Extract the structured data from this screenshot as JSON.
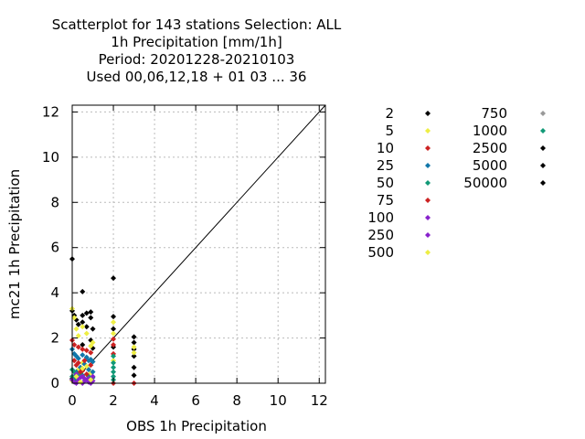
{
  "chart_data": {
    "type": "scatter",
    "title_lines": [
      "Scatterplot for  143 stations Selection: ALL",
      "1h Precipitation [mm/1h]",
      "Period: 20201228-20210103",
      "Used  00,06,12,18 + 01 03 ... 36"
    ],
    "xlabel": "OBS 1h Precipitation",
    "ylabel": "mc21 1h Precipitation",
    "xlim": [
      0,
      12.3
    ],
    "ylim": [
      0,
      12.3
    ],
    "xticks": [
      0,
      2,
      4,
      6,
      8,
      10,
      12
    ],
    "yticks": [
      0,
      2,
      4,
      6,
      8,
      10,
      12
    ],
    "grid": true,
    "diagonal_line": true,
    "legend_position": "right",
    "series": [
      {
        "name": "2",
        "color": "#000000",
        "points": [
          [
            0,
            5.5
          ],
          [
            0,
            3.2
          ],
          [
            0.1,
            3.0
          ],
          [
            0.2,
            2.8
          ],
          [
            0.3,
            2.6
          ],
          [
            0.5,
            4.05
          ],
          [
            0.5,
            3.0
          ],
          [
            0.5,
            2.7
          ],
          [
            0.7,
            2.5
          ],
          [
            0.7,
            3.1
          ],
          [
            0.9,
            3.15
          ],
          [
            0.9,
            2.9
          ],
          [
            1.0,
            2.4
          ],
          [
            0.5,
            1.7
          ],
          [
            0.9,
            1.9
          ],
          [
            1.0,
            1.55
          ],
          [
            2.0,
            4.65
          ],
          [
            2.0,
            2.95
          ],
          [
            2.0,
            2.4
          ],
          [
            2.0,
            1.6
          ],
          [
            3.0,
            2.05
          ],
          [
            3.0,
            1.8
          ],
          [
            3.0,
            1.5
          ],
          [
            3.0,
            1.2
          ],
          [
            3.0,
            0.7
          ],
          [
            3.0,
            0.35
          ],
          [
            0,
            0.2
          ],
          [
            0.1,
            0.1
          ]
        ]
      },
      {
        "name": "5",
        "color": "#eeee44",
        "points": [
          [
            0,
            3.3
          ],
          [
            0.1,
            2.9
          ],
          [
            0.2,
            2.4
          ],
          [
            0.3,
            2.1
          ],
          [
            0.5,
            2.5
          ],
          [
            0.7,
            2.2
          ],
          [
            0.9,
            1.65
          ],
          [
            1.0,
            1.8
          ],
          [
            2.0,
            2.7
          ],
          [
            2.0,
            2.2
          ],
          [
            2.0,
            1.0
          ],
          [
            3.0,
            1.6
          ],
          [
            3.0,
            1.35
          ],
          [
            0.5,
            0.9
          ],
          [
            0.3,
            0.6
          ],
          [
            0.9,
            0.45
          ],
          [
            0,
            0.1
          ]
        ]
      },
      {
        "name": "10",
        "color": "#cc2222",
        "points": [
          [
            0,
            1.9
          ],
          [
            0.1,
            1.7
          ],
          [
            0.3,
            1.6
          ],
          [
            0.5,
            1.5
          ],
          [
            0.7,
            1.45
          ],
          [
            0.9,
            1.35
          ],
          [
            2.0,
            1.95
          ],
          [
            2.0,
            1.7
          ],
          [
            2.0,
            1.3
          ],
          [
            3.0,
            0.0
          ],
          [
            2.0,
            0.0
          ],
          [
            0.5,
            0.55
          ],
          [
            0.2,
            0.8
          ]
        ]
      },
      {
        "name": "25",
        "color": "#1177aa",
        "points": [
          [
            0,
            1.5
          ],
          [
            0.1,
            1.3
          ],
          [
            0.2,
            1.2
          ],
          [
            0.3,
            1.1
          ],
          [
            0.5,
            1.25
          ],
          [
            0.7,
            1.15
          ],
          [
            0.8,
            1.0
          ],
          [
            0.9,
            1.05
          ],
          [
            1.0,
            0.95
          ],
          [
            0.6,
            0.85
          ],
          [
            0.4,
            0.7
          ],
          [
            0.2,
            0.5
          ],
          [
            0.1,
            0.3
          ],
          [
            0.8,
            0.6
          ],
          [
            1.0,
            0.5
          ]
        ]
      },
      {
        "name": "50",
        "color": "#119977",
        "points": [
          [
            0,
            0.6
          ],
          [
            0.1,
            0.5
          ],
          [
            0.3,
            0.4
          ],
          [
            0.5,
            0.35
          ],
          [
            0.8,
            0.3
          ],
          [
            1.0,
            0.25
          ],
          [
            2.0,
            1.2
          ],
          [
            2.0,
            0.9
          ],
          [
            2.0,
            0.7
          ],
          [
            2.0,
            0.5
          ],
          [
            2.0,
            0.3
          ],
          [
            2.0,
            0.15
          ],
          [
            0,
            0.3
          ],
          [
            0.2,
            0.2
          ]
        ]
      },
      {
        "name": "75",
        "color": "#cc2222",
        "points": [
          [
            0.1,
            1.0
          ],
          [
            0.3,
            0.9
          ],
          [
            0.6,
            1.0
          ],
          [
            0.9,
            0.8
          ],
          [
            0.4,
            0.5
          ],
          [
            0.7,
            0.4
          ]
        ]
      },
      {
        "name": "100",
        "color": "#8822cc",
        "points": [
          [
            0,
            0.15
          ],
          [
            0.1,
            0.05
          ],
          [
            0.3,
            0.1
          ],
          [
            0.5,
            0.0
          ],
          [
            0.6,
            0.2
          ],
          [
            0.8,
            0.05
          ],
          [
            1.0,
            0.1
          ],
          [
            0.2,
            0.0
          ],
          [
            0.4,
            0.25
          ],
          [
            0.7,
            0.15
          ],
          [
            0.9,
            0.0
          ]
        ]
      },
      {
        "name": "250",
        "color": "#8822cc",
        "points": [
          [
            0.2,
            0.4
          ],
          [
            0.5,
            0.3
          ],
          [
            0.8,
            0.2
          ],
          [
            1.0,
            0.3
          ],
          [
            0.3,
            0.2
          ],
          [
            0.6,
            0.1
          ]
        ]
      },
      {
        "name": "500",
        "color": "#eeee44",
        "points": [
          [
            0.2,
            0.3
          ],
          [
            0.5,
            0.65
          ],
          [
            0.9,
            0.15
          ],
          [
            0.4,
            0.05
          ],
          [
            0.7,
            0.75
          ]
        ]
      },
      {
        "name": "750",
        "color": "#999999",
        "points": []
      },
      {
        "name": "1000",
        "color": "#119977",
        "points": []
      },
      {
        "name": "2500",
        "color": "#000000",
        "points": []
      },
      {
        "name": "5000",
        "color": "#000000",
        "points": []
      },
      {
        "name": "50000",
        "color": "#000000",
        "points": []
      }
    ]
  }
}
